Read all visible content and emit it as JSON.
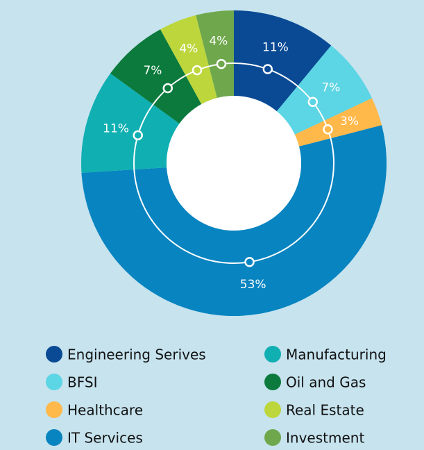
{
  "chart_data": {
    "type": "donut",
    "categories": [
      "Engineering Serives",
      "BFSI",
      "Healthcare",
      "IT Services",
      "Manufacturing",
      "Oil and Gas",
      "Real Estate",
      "Investment"
    ],
    "values": [
      11,
      7,
      3,
      53,
      11,
      7,
      4,
      4
    ],
    "value_labels": [
      "11%",
      "7%",
      "3%",
      "53%",
      "11%",
      "7%",
      "4%",
      "4%"
    ],
    "colors": [
      "#0a4a94",
      "#5cd5e4",
      "#ffb84a",
      "#0884c0",
      "#10afb2",
      "#0b7a3c",
      "#bcd63c",
      "#6fa84c"
    ]
  }
}
